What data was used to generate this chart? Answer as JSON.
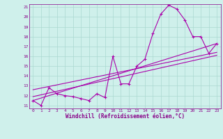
{
  "xlabel": "Windchill (Refroidissement éolien,°C)",
  "bg_color": "#cff0eb",
  "line_color": "#aa00aa",
  "grid_color": "#aad8d0",
  "xlim": [
    -0.5,
    23.5
  ],
  "ylim": [
    10.7,
    21.3
  ],
  "xticks": [
    0,
    1,
    2,
    3,
    4,
    5,
    6,
    7,
    8,
    9,
    10,
    11,
    12,
    13,
    14,
    15,
    16,
    17,
    18,
    19,
    20,
    21,
    22,
    23
  ],
  "yticks": [
    11,
    12,
    13,
    14,
    15,
    16,
    17,
    18,
    19,
    20,
    21
  ],
  "main_series_x": [
    0,
    1,
    2,
    3,
    4,
    5,
    6,
    7,
    8,
    9,
    10,
    11,
    12,
    13,
    14,
    15,
    16,
    17,
    18,
    19,
    20,
    21,
    22,
    23
  ],
  "main_series_y": [
    11.5,
    11.0,
    12.8,
    12.2,
    12.0,
    11.9,
    11.7,
    11.5,
    12.2,
    11.8,
    16.0,
    13.2,
    13.2,
    15.0,
    15.7,
    18.3,
    20.3,
    21.2,
    20.8,
    19.7,
    18.0,
    18.0,
    16.3,
    17.3
  ],
  "line2_x": [
    0,
    23
  ],
  "line2_y": [
    11.5,
    17.3
  ],
  "line3_x": [
    0,
    23
  ],
  "line3_y": [
    12.6,
    16.4
  ],
  "line4_x": [
    0,
    23
  ],
  "line4_y": [
    11.9,
    16.1
  ]
}
